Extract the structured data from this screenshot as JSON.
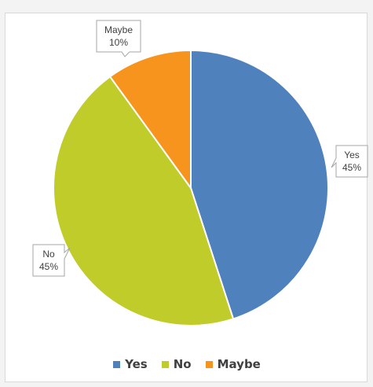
{
  "chart_data": {
    "type": "pie",
    "title": "",
    "categories": [
      "Yes",
      "No",
      "Maybe"
    ],
    "values": [
      45,
      45,
      10
    ],
    "data_labels": [
      {
        "name": "Yes",
        "pct": "45%"
      },
      {
        "name": "No",
        "pct": "45%"
      },
      {
        "name": "Maybe",
        "pct": "10%"
      }
    ],
    "colors": [
      "#4f81bd",
      "#c0cc29",
      "#f7941d"
    ],
    "legend": {
      "position": "bottom",
      "entries": [
        "Yes",
        "No",
        "Maybe"
      ]
    }
  }
}
